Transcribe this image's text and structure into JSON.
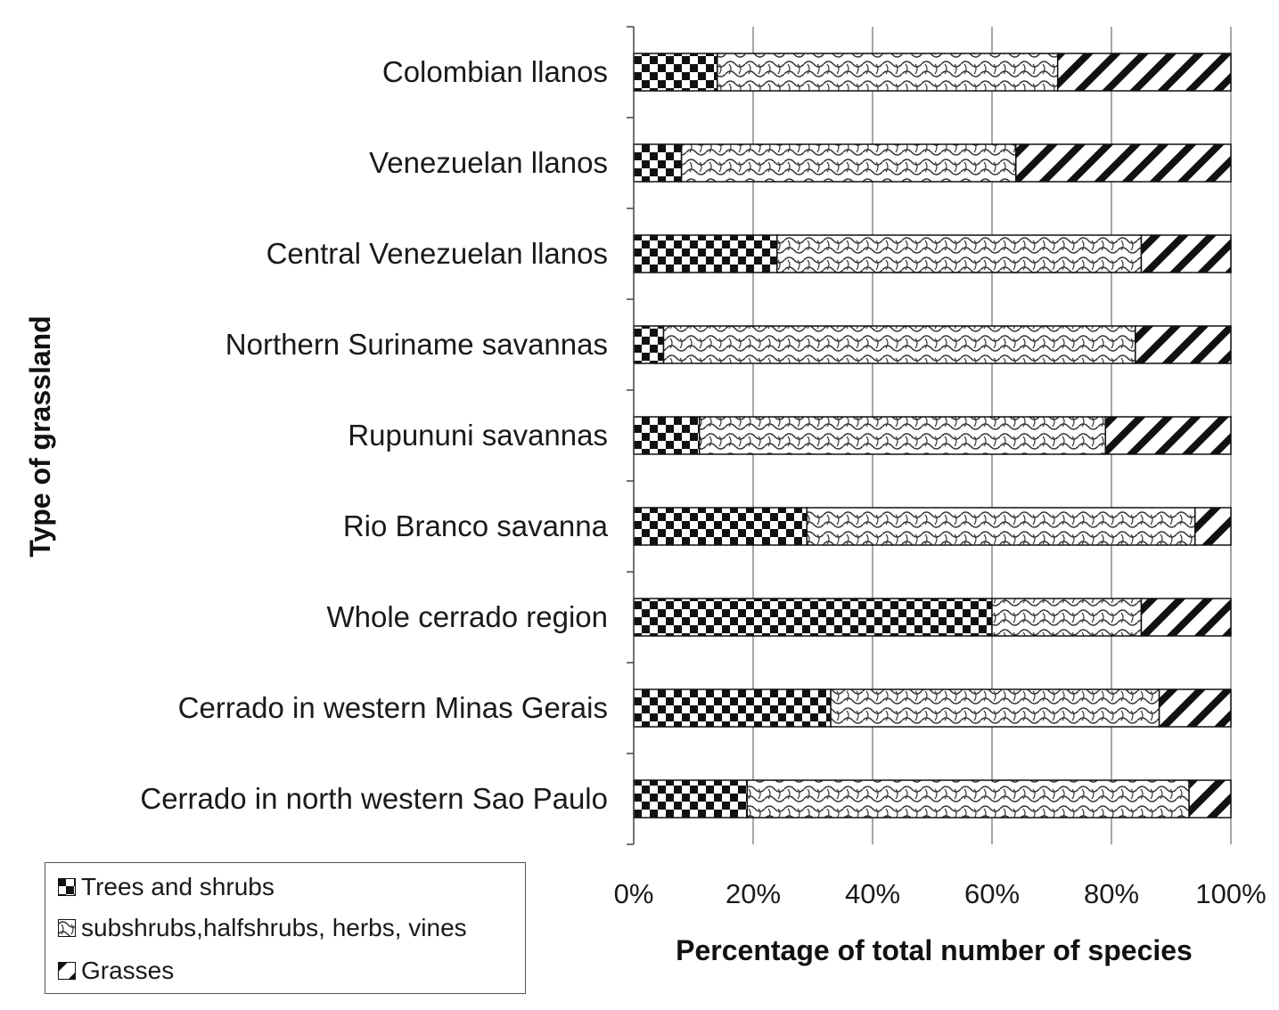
{
  "chart_data": {
    "type": "bar",
    "orientation": "horizontal",
    "stacked": true,
    "percent": true,
    "categories": [
      "Colombian llanos",
      "Venezuelan llanos",
      "Central Venezuelan llanos",
      "Northern Suriname savannas",
      "Rupununi savannas",
      "Rio Branco savanna",
      "Whole cerrado region",
      "Cerrado in western Minas Gerais",
      "Cerrado in north western Sao Paulo"
    ],
    "series": [
      {
        "name": "Trees and shrubs",
        "pattern": "checker",
        "values": [
          14,
          8,
          24,
          5,
          11,
          29,
          60,
          33,
          19
        ]
      },
      {
        "name": "subshrubs,halfshrubs, herbs, vines",
        "pattern": "wave",
        "values": [
          57,
          56,
          61,
          79,
          68,
          65,
          25,
          55,
          74
        ]
      },
      {
        "name": "Grasses",
        "pattern": "diagonal",
        "values": [
          29,
          36,
          15,
          16,
          21,
          6,
          15,
          12,
          7
        ]
      }
    ],
    "xticks": [
      "0%",
      "20%",
      "40%",
      "60%",
      "80%",
      "100%"
    ],
    "xlim": [
      0,
      100
    ],
    "xlabel": "Percentage of total number of species",
    "ylabel": "Type of grassland",
    "grid": "vertical",
    "legend_position": "bottom-left"
  }
}
